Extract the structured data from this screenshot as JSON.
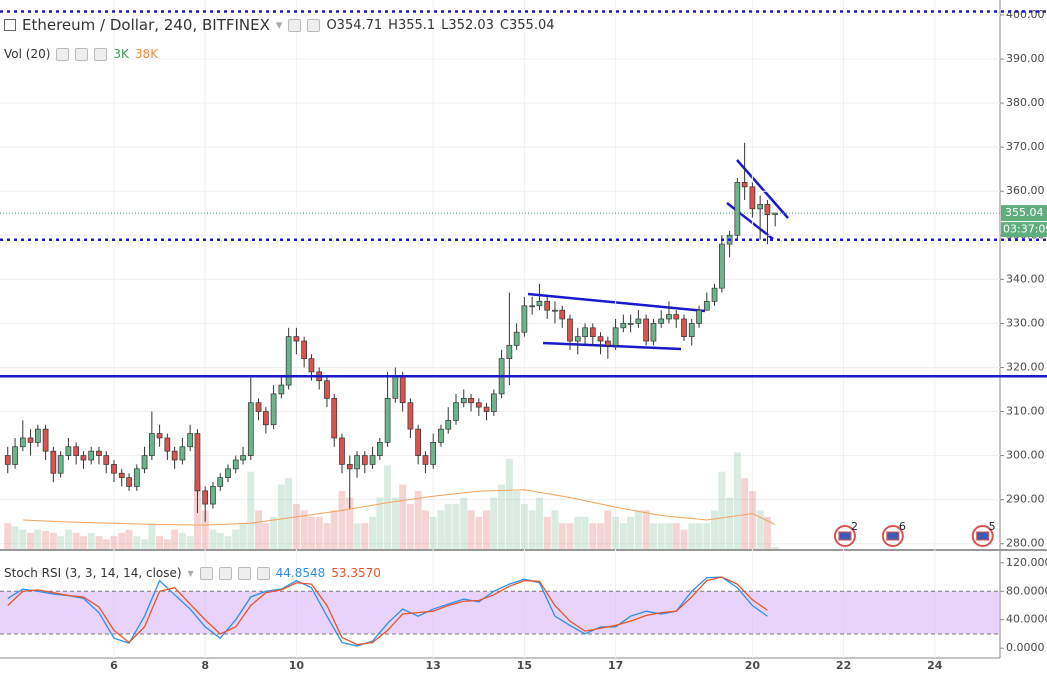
{
  "chart_data": [
    {
      "type": "candlestick",
      "title": "Ethereum / Dollar, 240, BITFINEX",
      "ohlc_labels": [
        "O",
        "H",
        "L",
        "C"
      ],
      "x": [
        3.67,
        3.83,
        4,
        4.17,
        4.33,
        4.5,
        4.67,
        4.83,
        5,
        5.17,
        5.33,
        5.5,
        5.67,
        5.83,
        6,
        6.17,
        6.33,
        6.5,
        6.67,
        6.83,
        7,
        7.17,
        7.33,
        7.5,
        7.67,
        7.83,
        8,
        8.17,
        8.33,
        8.5,
        8.67,
        8.83,
        9,
        9.17,
        9.33,
        9.5,
        9.67,
        9.83,
        10,
        10.17,
        10.33,
        10.5,
        10.67,
        10.83,
        11,
        11.17,
        11.33,
        11.5,
        11.67,
        11.83,
        12,
        12.17,
        12.33,
        12.5,
        12.67,
        12.83,
        13,
        13.17,
        13.33,
        13.5,
        13.67,
        13.83,
        14,
        14.17,
        14.33,
        14.5,
        14.67,
        14.83,
        15,
        15.17,
        15.33,
        15.5,
        15.67,
        15.83,
        16,
        16.17,
        16.33,
        16.5,
        16.67,
        16.83,
        17,
        17.17,
        17.33,
        17.5,
        17.67,
        17.83,
        18,
        18.17,
        18.33,
        18.5,
        18.67,
        18.83,
        19,
        19.17,
        19.33,
        19.5,
        19.67,
        19.83,
        20,
        20.17,
        20.33,
        20.5
      ],
      "open": [
        300,
        298,
        302,
        304,
        303,
        306,
        301,
        296,
        300,
        302,
        300,
        299,
        301,
        300,
        298,
        296,
        295,
        293,
        297,
        300,
        305,
        304,
        301,
        299,
        302,
        305,
        292,
        289,
        293,
        295,
        297,
        299,
        300,
        312,
        310,
        307,
        314,
        316,
        327,
        326,
        322,
        319,
        317,
        313,
        304,
        298,
        297,
        300,
        298,
        300,
        303,
        313,
        318,
        312,
        306,
        300,
        298,
        303,
        306,
        308,
        312,
        313,
        312,
        311,
        310,
        314,
        322,
        325,
        328,
        334,
        334,
        335,
        333,
        333,
        331,
        326,
        327,
        329,
        327,
        326,
        325,
        329,
        330,
        330,
        331,
        326,
        330,
        331,
        332,
        331,
        327,
        330,
        333,
        335,
        338,
        348,
        350,
        362,
        361,
        356,
        357,
        354.71
      ],
      "high": [
        302,
        304,
        308,
        306,
        307,
        307,
        302,
        301,
        304,
        303,
        301,
        302,
        302,
        301,
        299,
        297,
        296,
        298,
        302,
        310,
        307,
        305,
        302,
        304,
        307,
        306,
        293,
        294,
        296,
        298,
        300,
        302,
        318,
        313,
        311,
        316,
        318,
        329,
        329,
        327,
        323,
        320,
        318,
        314,
        305,
        300,
        301,
        301,
        302,
        304,
        319,
        320,
        319,
        313,
        307,
        301,
        305,
        307,
        311,
        314,
        315,
        314,
        313,
        312,
        315,
        324,
        337,
        330,
        336,
        336,
        339,
        336,
        335,
        334,
        332,
        329,
        330,
        330,
        328,
        327,
        331,
        332,
        332,
        333,
        332,
        331,
        333,
        335,
        333,
        332,
        331,
        334,
        337,
        339,
        350,
        351,
        363,
        371,
        362,
        359,
        358,
        355.1
      ],
      "low": [
        296,
        297,
        301,
        300,
        302,
        299,
        294,
        295,
        299,
        298,
        297,
        298,
        298,
        296,
        294,
        293,
        292,
        292,
        296,
        299,
        302,
        299,
        297,
        298,
        301,
        287,
        285,
        288,
        292,
        294,
        296,
        298,
        299,
        308,
        305,
        306,
        313,
        315,
        323,
        320,
        317,
        315,
        311,
        302,
        296,
        288,
        295,
        296,
        297,
        299,
        302,
        312,
        310,
        304,
        298,
        296,
        297,
        302,
        305,
        307,
        311,
        310,
        309,
        308,
        309,
        313,
        316,
        324,
        327,
        332,
        333,
        331,
        330,
        329,
        324,
        323,
        325,
        325,
        323,
        322,
        324,
        328,
        328,
        329,
        325,
        325,
        329,
        330,
        329,
        326,
        325,
        329,
        333,
        334,
        337,
        345,
        349,
        358,
        354,
        349,
        348,
        352.03
      ],
      "close": [
        298,
        302,
        304,
        303,
        306,
        301,
        296,
        300,
        302,
        300,
        299,
        301,
        300,
        298,
        296,
        295,
        293,
        297,
        300,
        305,
        304,
        301,
        299,
        302,
        305,
        292,
        289,
        293,
        295,
        297,
        299,
        300,
        312,
        310,
        307,
        314,
        316,
        327,
        326,
        322,
        319,
        317,
        313,
        304,
        298,
        297,
        300,
        298,
        300,
        303,
        313,
        318,
        312,
        306,
        300,
        298,
        303,
        306,
        308,
        312,
        313,
        312,
        311,
        310,
        314,
        322,
        325,
        328,
        334,
        334,
        335,
        333,
        333,
        331,
        326,
        327,
        329,
        327,
        326,
        325,
        329,
        330,
        330,
        331,
        326,
        330,
        331,
        332,
        331,
        327,
        330,
        333,
        335,
        338,
        348,
        350,
        362,
        361,
        356,
        357,
        354.71,
        355.04
      ],
      "volume_title": "Vol (20)",
      "volume": [
        40,
        35,
        30,
        25,
        30,
        28,
        25,
        20,
        30,
        25,
        20,
        25,
        20,
        15,
        20,
        25,
        30,
        20,
        15,
        40,
        20,
        15,
        30,
        25,
        20,
        100,
        60,
        30,
        25,
        20,
        30,
        40,
        120,
        60,
        40,
        50,
        100,
        110,
        70,
        60,
        50,
        50,
        40,
        60,
        90,
        80,
        40,
        40,
        50,
        80,
        130,
        80,
        100,
        70,
        90,
        60,
        50,
        60,
        70,
        70,
        80,
        60,
        50,
        60,
        80,
        100,
        140,
        90,
        70,
        60,
        80,
        50,
        60,
        40,
        40,
        50,
        50,
        40,
        40,
        60,
        50,
        40,
        50,
        60,
        60,
        40,
        40,
        40,
        40,
        30,
        40,
        40,
        40,
        60,
        120,
        80,
        150,
        110,
        90,
        60,
        50,
        3
      ],
      "volume_label": "3K",
      "volume_ma": {
        "x": [
          4,
          5,
          6,
          7,
          8,
          9,
          10,
          11,
          12,
          13,
          14,
          15,
          16,
          17,
          18,
          19,
          20,
          20.5
        ],
        "values": [
          45,
          42,
          40,
          38,
          37,
          40,
          50,
          60,
          72,
          82,
          90,
          92,
          80,
          65,
          52,
          45,
          55,
          38
        ],
        "color": "#f5a35c"
      },
      "volume_ma_label": "38K",
      "vlim": [
        0,
        853
      ],
      "up_color": "#6bb58c",
      "down_color": "#d9534f",
      "xlim": [
        3.5,
        25.43
      ],
      "xticks": [
        6,
        8,
        10,
        13,
        15,
        17,
        20,
        22,
        24
      ],
      "ylim": [
        278.8,
        403.4
      ],
      "yticks": [
        {
          "value": 280,
          "label": "280.00"
        },
        {
          "value": 290,
          "label": "290.00"
        },
        {
          "value": 300,
          "label": "300.00"
        },
        {
          "value": 310,
          "label": "310.00"
        },
        {
          "value": 320,
          "label": "320.00"
        },
        {
          "value": 330,
          "label": "330.00"
        },
        {
          "value": 340,
          "label": "340.00"
        },
        {
          "value": 350,
          "label": "350.00"
        },
        {
          "value": 360,
          "label": "360.00"
        },
        {
          "value": 370,
          "label": "370.00"
        },
        {
          "value": 380,
          "label": "380.00"
        },
        {
          "value": 390,
          "label": "390.00"
        },
        {
          "value": 400,
          "label": "400.00"
        }
      ],
      "grid": true,
      "levels": [
        {
          "value": 400.8,
          "style": "dotted",
          "color": "#1a1acc"
        },
        {
          "value": 349,
          "style": "dotted",
          "color": "#1a1acc"
        },
        {
          "value": 318,
          "style": "solid",
          "color": "#1a1acc"
        }
      ],
      "countdown": "03:37:09",
      "events": [
        {
          "x": 22.03,
          "count": 2
        },
        {
          "x": 23.08,
          "count": 6
        },
        {
          "x": 25.05,
          "count": 5
        }
      ]
    },
    {
      "type": "line",
      "title": "Stoch RSI (3, 3, 14, 14, close)",
      "x": [
        3.67,
        4,
        4.33,
        4.67,
        5,
        5.33,
        5.67,
        6,
        6.33,
        6.67,
        7,
        7.33,
        7.67,
        8,
        8.33,
        8.67,
        9,
        9.33,
        9.67,
        10,
        10.33,
        10.67,
        11,
        11.33,
        11.67,
        12,
        12.33,
        12.67,
        13,
        13.33,
        13.67,
        14,
        14.33,
        14.67,
        15,
        15.33,
        15.67,
        16,
        16.33,
        16.67,
        17,
        17.33,
        17.67,
        18,
        18.33,
        18.67,
        19,
        19.33,
        19.67,
        20,
        20.33
      ],
      "series": [
        {
          "color": "#2f8fe8",
          "values": [
            70,
            83,
            80,
            76,
            74,
            70,
            50,
            14,
            7,
            45,
            95,
            75,
            55,
            30,
            14,
            40,
            72,
            80,
            83,
            95,
            85,
            45,
            8,
            3,
            10,
            35,
            55,
            45,
            55,
            62,
            69,
            65,
            80,
            90,
            97,
            92,
            45,
            32,
            20,
            30,
            30,
            45,
            52,
            48,
            52,
            80,
            99,
            100,
            85,
            60,
            44.8548
          ]
        },
        {
          "color": "#e8542a",
          "values": [
            60,
            80,
            82,
            78,
            74,
            72,
            58,
            25,
            8,
            30,
            80,
            85,
            62,
            40,
            20,
            30,
            60,
            78,
            82,
            92,
            90,
            60,
            15,
            5,
            8,
            25,
            48,
            50,
            52,
            60,
            66,
            67,
            75,
            87,
            95,
            94,
            60,
            38,
            24,
            28,
            32,
            38,
            46,
            50,
            52,
            72,
            95,
            100,
            90,
            68,
            53.357
          ],
          "last_label": "53.3570"
        }
      ],
      "bands": [
        20,
        80
      ],
      "band_color": "#d9b8f7",
      "ylim": [
        -13.8,
        133.8
      ],
      "yticks": [
        {
          "value": 0,
          "label": "0.0000"
        },
        {
          "value": 40,
          "label": "40.0000"
        },
        {
          "value": 80,
          "label": "80.0000"
        },
        {
          "value": 120,
          "label": "120.0000"
        }
      ]
    }
  ]
}
